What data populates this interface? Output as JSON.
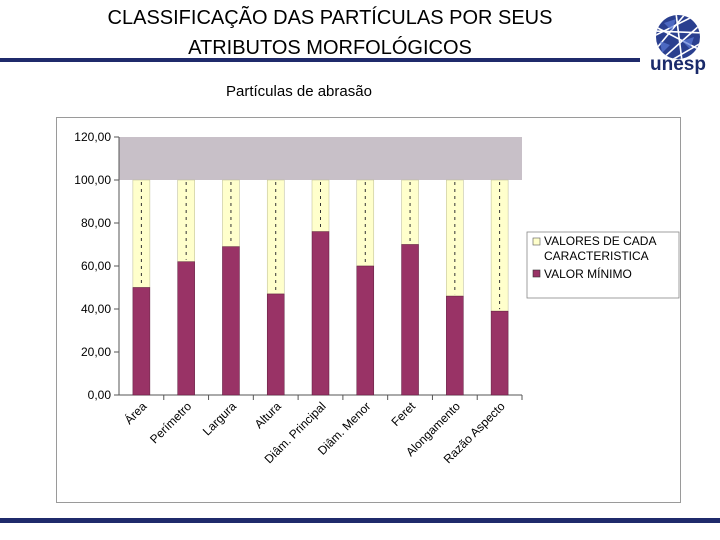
{
  "header": {
    "title_line1": "CLASSIFICAÇÃO DAS PARTÍCULAS POR SEUS",
    "title_line2": "ATRIBUTOS MORFOLÓGICOS",
    "logo_text": "unesp"
  },
  "colors": {
    "brand": "#1f2a6b",
    "plot_bg": "#c8c0c8",
    "min_bar": "#993366",
    "range_bar": "#ffffcc"
  },
  "chart_data": {
    "type": "bar",
    "title": "Partículas de abrasão",
    "stacked": true,
    "categories": [
      "Área",
      "Perímetro",
      "Largura",
      "Altura",
      "Diâm. Principal",
      "Diâm. Menor",
      "Feret",
      "Alongamento",
      "Razão Aspecto"
    ],
    "series": [
      {
        "name": "VALOR MÍNIMO",
        "values": [
          50,
          62,
          69,
          47,
          76,
          60,
          70,
          46,
          39
        ],
        "color": "#993366"
      },
      {
        "name": "VALORES DE CADA CARACTERISTICA",
        "values": [
          50,
          38,
          31,
          53,
          24,
          40,
          30,
          54,
          61
        ],
        "color": "#ffffcc"
      }
    ],
    "ylim": [
      0,
      120
    ],
    "yticks": [
      "0,00",
      "20,00",
      "40,00",
      "60,00",
      "80,00",
      "100,00",
      "120,00"
    ],
    "grid": false,
    "legend_position": "right",
    "legend": {
      "range_line1": "VALORES DE CADA",
      "range_line2": "CARACTERISTICA",
      "min_label": "VALOR MÍNIMO"
    }
  }
}
